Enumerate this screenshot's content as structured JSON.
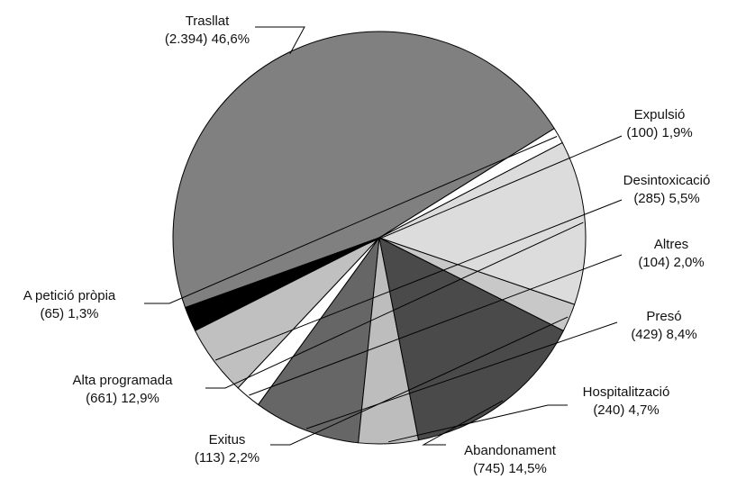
{
  "chart_data": {
    "type": "pie",
    "title": "",
    "start_label": "Trasllat",
    "direction": "clockwise",
    "slices": [
      {
        "label": "Trasllat",
        "count_text": "(2.394)",
        "percent_text": "46,6%",
        "value": 2394,
        "percent": 46.6,
        "color": "#808080"
      },
      {
        "label": "Expulsió",
        "count_text": "(100)",
        "percent_text": "1,9%",
        "value": 100,
        "percent": 1.9,
        "color": "#000000"
      },
      {
        "label": "Desintoxicació",
        "count_text": "(285)",
        "percent_text": "5,5%",
        "value": 285,
        "percent": 5.5,
        "color": "#c0c0c0"
      },
      {
        "label": "Altres",
        "count_text": "(104)",
        "percent_text": "2,0%",
        "value": 104,
        "percent": 2.0,
        "color": "#ffffff"
      },
      {
        "label": "Presó",
        "count_text": "(429)",
        "percent_text": "8,4%",
        "value": 429,
        "percent": 8.4,
        "color": "#666666"
      },
      {
        "label": "Hospitalització",
        "count_text": "(240)",
        "percent_text": "4,7%",
        "value": 240,
        "percent": 4.7,
        "color": "#bdbdbd"
      },
      {
        "label": "Abandonament",
        "count_text": "(745)",
        "percent_text": "14,5%",
        "value": 745,
        "percent": 14.5,
        "color": "#4a4a4a"
      },
      {
        "label": "Exitus",
        "count_text": "(113)",
        "percent_text": "2,2%",
        "value": 113,
        "percent": 2.2,
        "color": "#c8c8c8"
      },
      {
        "label": "Alta programada",
        "count_text": "(661)",
        "percent_text": "12,9%",
        "value": 661,
        "percent": 12.9,
        "color": "#dcdcdc"
      },
      {
        "label": "A petició pròpia",
        "count_text": "(65)",
        "percent_text": "1,3%",
        "value": 65,
        "percent": 1.3,
        "color": "#ffffff"
      }
    ]
  }
}
